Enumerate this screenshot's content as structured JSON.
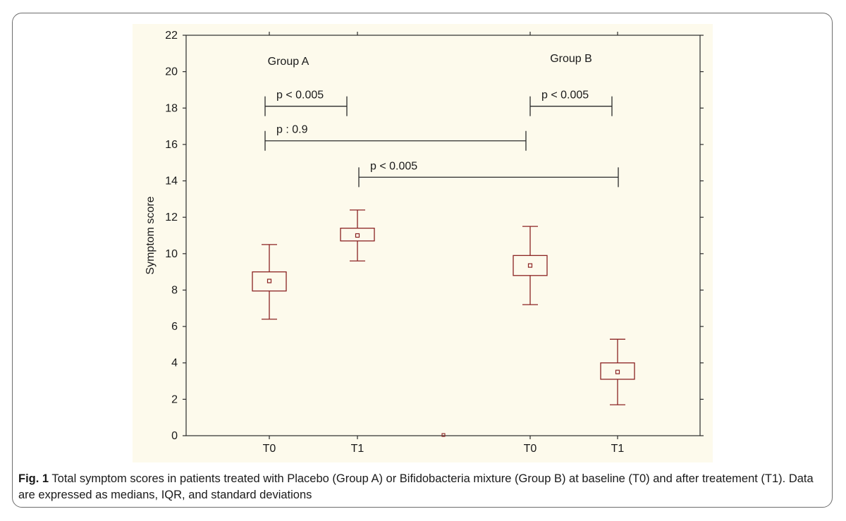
{
  "chart_data": {
    "type": "box",
    "ylabel": "Symptom score",
    "ylim": [
      0,
      22
    ],
    "yticks": [
      0,
      2,
      4,
      6,
      8,
      10,
      12,
      14,
      16,
      18,
      20,
      22
    ],
    "groups": [
      {
        "label": "Group A"
      },
      {
        "label": "Group B"
      }
    ],
    "boxes": [
      {
        "x_label": "T0",
        "group": "Group A",
        "x": 1,
        "median": 8.5,
        "q1": 7.95,
        "q3": 9.0,
        "low": 6.4,
        "high": 10.5
      },
      {
        "x_label": "T1",
        "group": "Group A",
        "x": 2,
        "median": 11.0,
        "q1": 10.7,
        "q3": 11.4,
        "low": 9.6,
        "high": 12.4
      },
      {
        "x_label": "T0",
        "group": "Group B",
        "x": 4,
        "median": 9.35,
        "q1": 8.8,
        "q3": 9.9,
        "low": 7.2,
        "high": 11.5
      },
      {
        "x_label": "T1",
        "group": "Group B",
        "x": 5,
        "median": 3.5,
        "q1": 3.1,
        "q3": 4.0,
        "low": 1.7,
        "high": 5.3
      }
    ],
    "stray_point": {
      "x": 3,
      "y": 0
    },
    "comparisons": [
      {
        "label": "p < 0.005",
        "from": 1,
        "to": 2,
        "y": 18.1
      },
      {
        "label": "p < 0.005",
        "from": 4,
        "to": 5,
        "y": 18.1
      },
      {
        "label": "p : 0.9",
        "from": 1,
        "to": 4,
        "y": 16.2
      },
      {
        "label": "p < 0.005",
        "from": 2,
        "to": 5,
        "y": 14.2
      }
    ],
    "colors": {
      "box": "#8b2323",
      "axis": "#2b2b2b",
      "background": "#fdfaec"
    }
  },
  "caption": {
    "label": "Fig. 1",
    "text": "Total symptom scores in patients treated with Placebo (Group A) or Bifidobacteria mixture (Group B) at baseline (T0) and after treatement (T1). Data are expressed as medians, IQR, and standard deviations"
  }
}
